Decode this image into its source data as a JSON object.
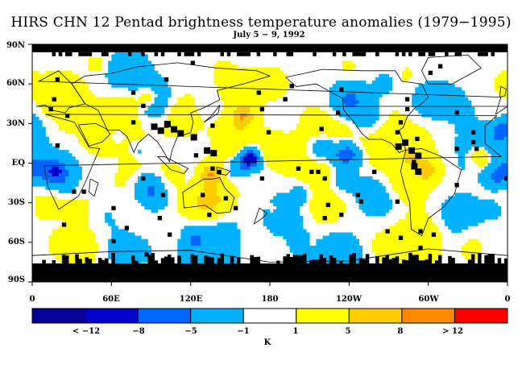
{
  "title": "HIRS CHN 12 Pentad brightness temperature anomalies (1979−1995)",
  "subtitle": "July 5 − 9, 1992",
  "lat_labels": [
    "90N",
    "60N",
    "30N",
    "EQ",
    "30S",
    "60S",
    "90S"
  ],
  "lon_labels": [
    "0",
    "60E",
    "120E",
    "180",
    "120W",
    "60W",
    "0"
  ],
  "colorbar": {
    "colors": [
      "#000099",
      "#0000cc",
      "#0066ff",
      "#00b2ff",
      "#ffffff",
      "#ffff00",
      "#ffcc00",
      "#ff8800",
      "#ff0000"
    ],
    "tick_labels": [
      "< −12",
      "−8",
      "−5",
      "−1",
      "1",
      "5",
      "8",
      "> 12"
    ],
    "unit": "K"
  },
  "map": {
    "missing_data_color": "#000000",
    "land_outline_color": "#000000"
  }
}
